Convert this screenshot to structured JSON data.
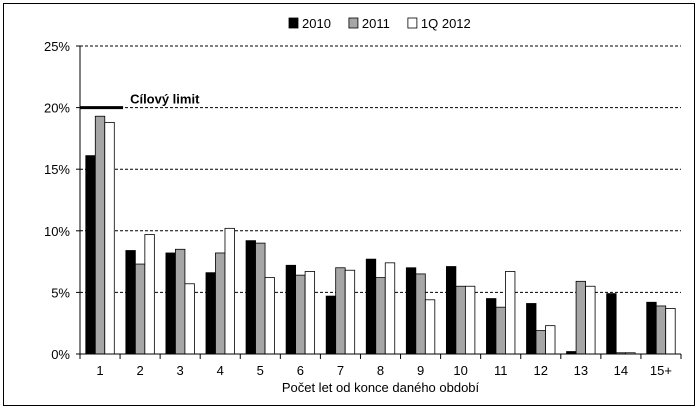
{
  "chart_data": {
    "type": "bar",
    "xlabel": "Počet let od konce daného období",
    "categories": [
      "1",
      "2",
      "3",
      "4",
      "5",
      "6",
      "7",
      "8",
      "9",
      "10",
      "11",
      "12",
      "13",
      "14",
      "15+"
    ],
    "ylim": [
      0,
      25
    ],
    "ytick_values": [
      0,
      5,
      10,
      15,
      20,
      25
    ],
    "ytick_labels": [
      "0%",
      "5%",
      "10%",
      "15%",
      "20%",
      "25%"
    ],
    "grid": "horizontal dashed",
    "legend_position": "top",
    "series": [
      {
        "name": "2010",
        "color": "#000000",
        "values": [
          16.1,
          8.4,
          8.2,
          6.6,
          9.2,
          7.2,
          4.7,
          7.7,
          7.0,
          7.1,
          4.5,
          4.1,
          0.2,
          4.9,
          4.2
        ]
      },
      {
        "name": "2011",
        "color": "#a6a6a6",
        "values": [
          19.3,
          7.3,
          8.5,
          8.2,
          9.0,
          6.4,
          7.0,
          6.2,
          6.5,
          5.5,
          3.8,
          1.9,
          5.9,
          0.1,
          3.9
        ]
      },
      {
        "name": "1Q 2012",
        "color": "#ffffff",
        "values": [
          18.8,
          9.7,
          5.7,
          10.2,
          6.2,
          6.7,
          6.8,
          7.4,
          4.4,
          5.5,
          6.7,
          2.3,
          5.5,
          0.1,
          3.7
        ]
      }
    ],
    "annotation": {
      "label": "Cílový limit",
      "value": 20
    }
  }
}
